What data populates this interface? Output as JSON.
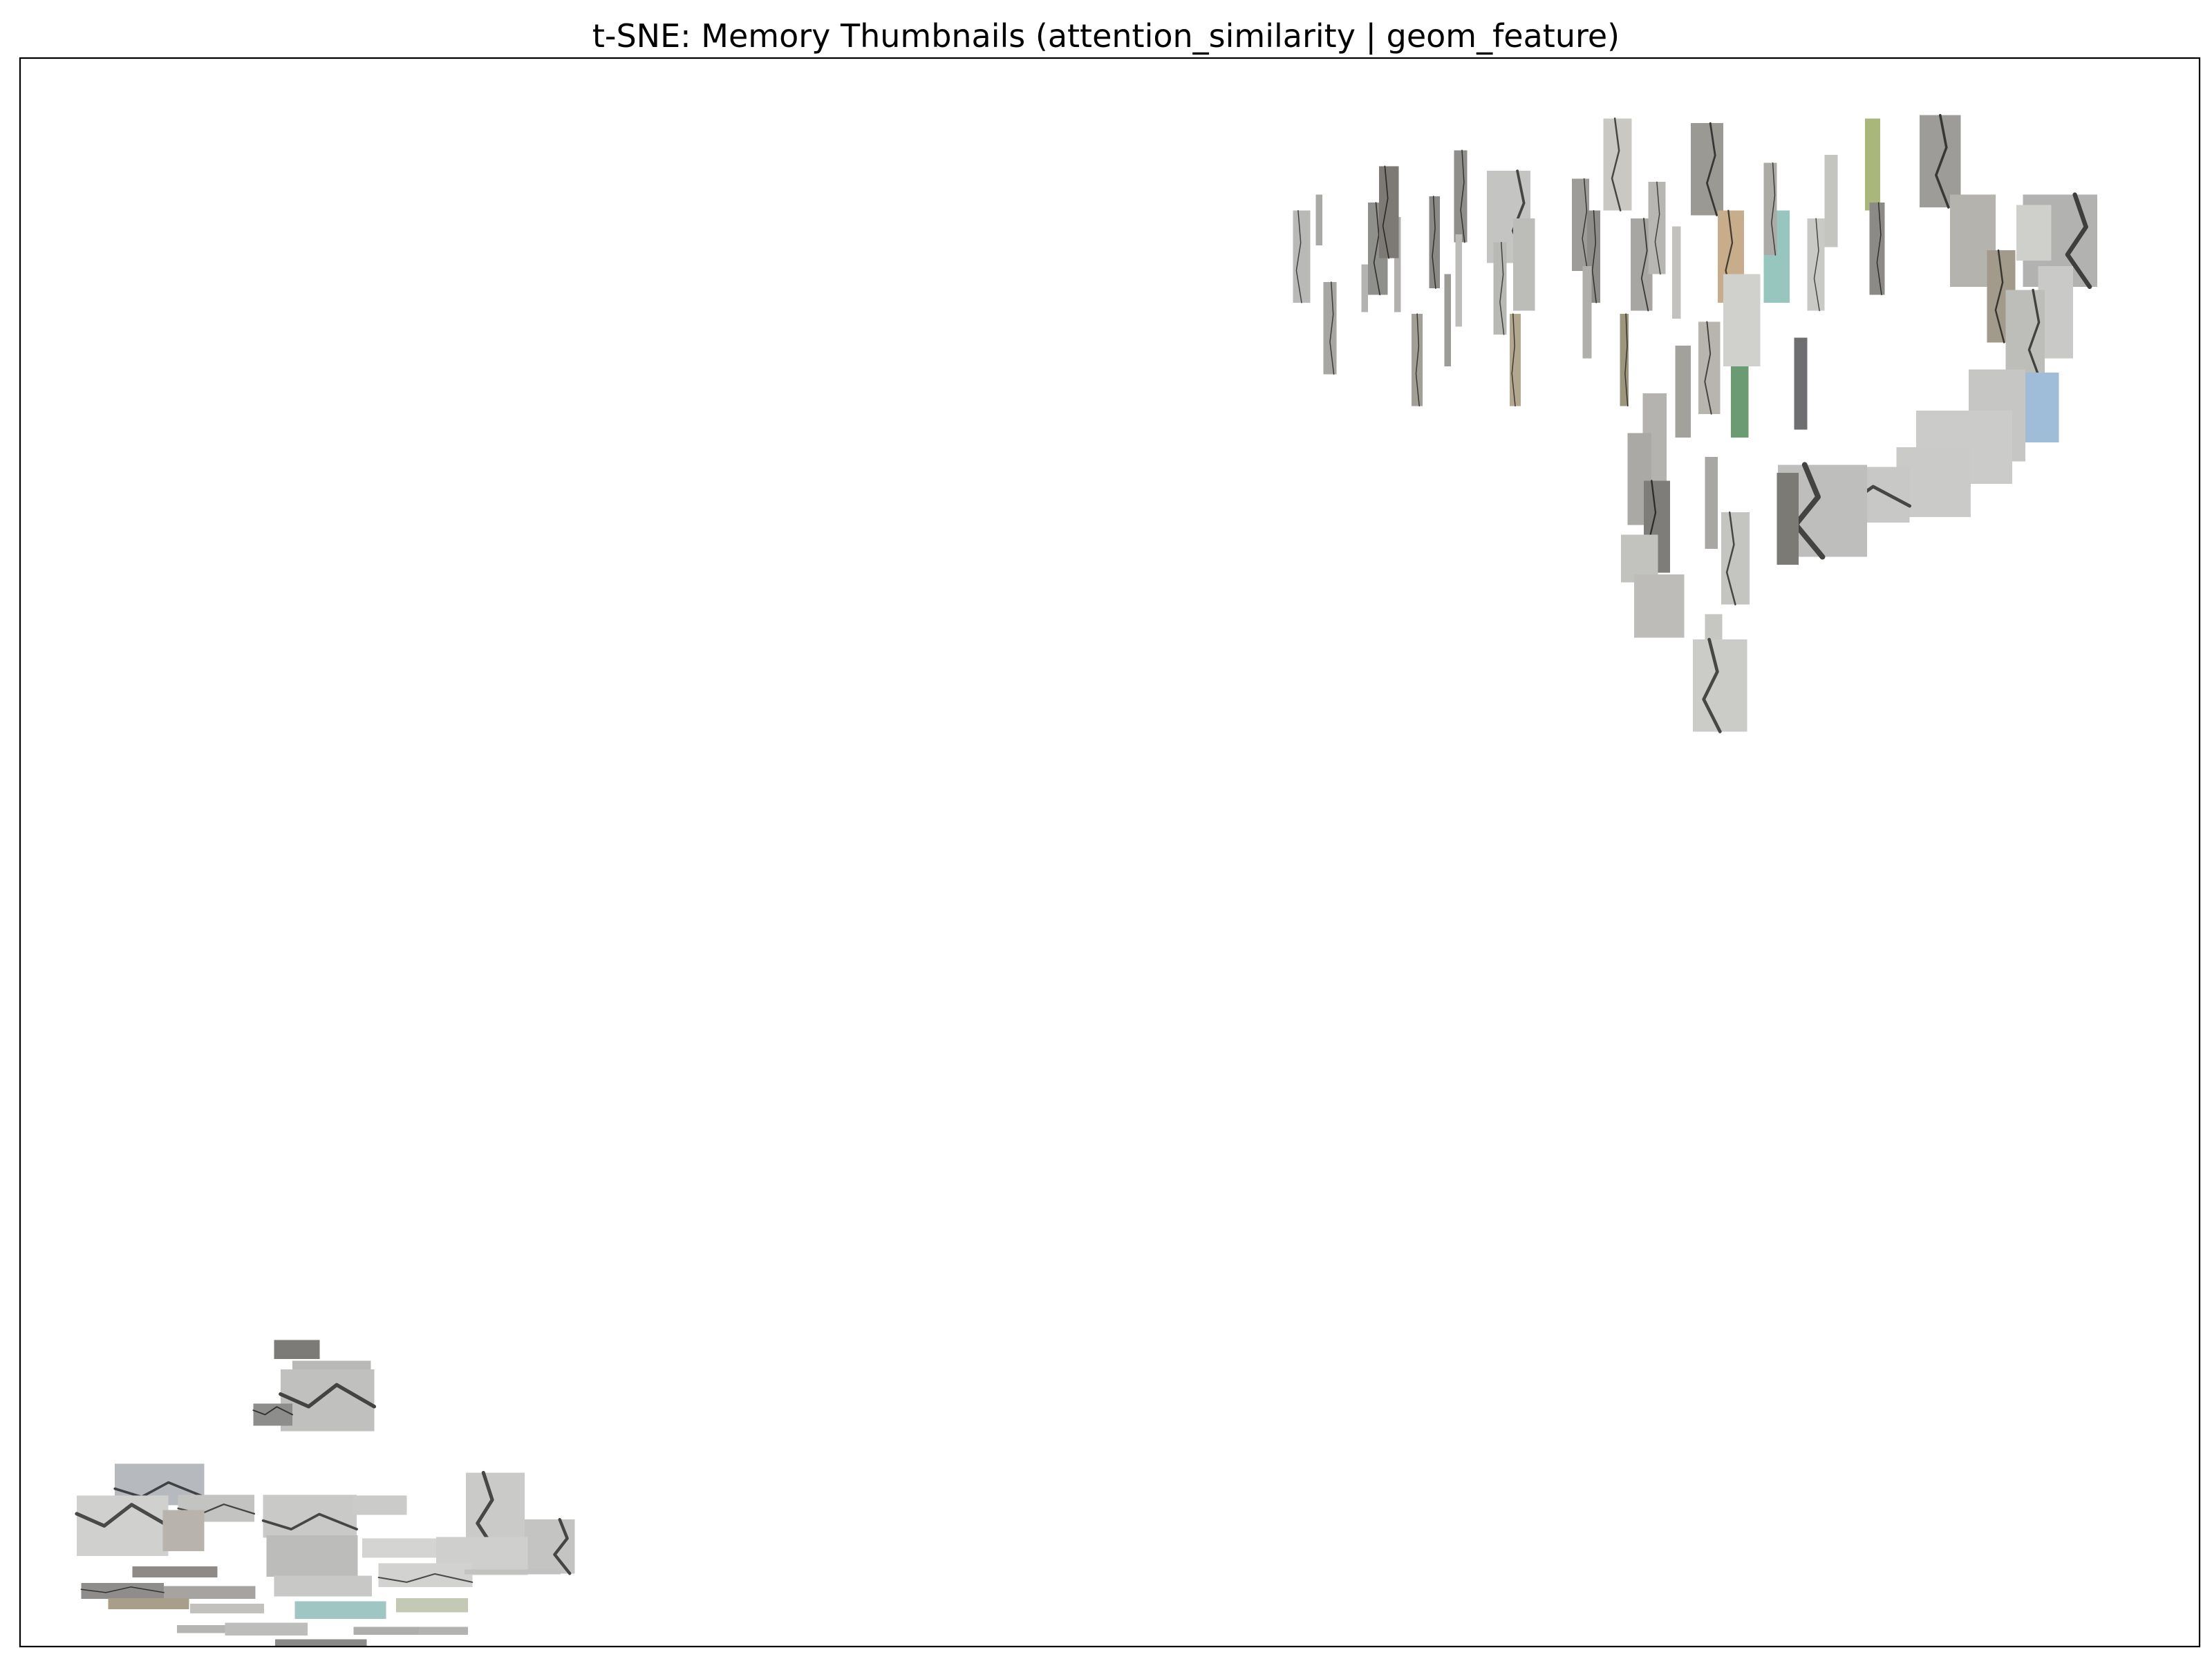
{
  "chart_data": {
    "type": "scatter",
    "title": "t-SNE: Memory Thumbnails (attention_similarity | geom_feature)",
    "xlabel": "",
    "ylabel": "",
    "xlim": [
      0,
      100
    ],
    "ylim": [
      0,
      100
    ],
    "axis_ticks": false,
    "grid": false,
    "marker": "image thumbnail",
    "series": [
      {
        "points": [
          {
            "x": 58.8,
            "y": 87.5,
            "w": 0.8,
            "h": 5.8,
            "color": "#b9b9b7",
            "crack": true
          },
          {
            "x": 59.6,
            "y": 89.8,
            "w": 0.3,
            "h": 3.2,
            "color": "#a9a9a6",
            "crack": false
          },
          {
            "x": 60.1,
            "y": 83.0,
            "w": 0.6,
            "h": 5.8,
            "color": "#a7a6a2",
            "crack": true
          },
          {
            "x": 62.3,
            "y": 88.0,
            "w": 0.9,
            "h": 5.8,
            "color": "#8f8f8c",
            "crack": true
          },
          {
            "x": 61.7,
            "y": 85.5,
            "w": 0.3,
            "h": 3.0,
            "color": "#b3b3b1",
            "crack": false
          },
          {
            "x": 63.2,
            "y": 87.0,
            "w": 0.3,
            "h": 6.0,
            "color": "#b2b1ad",
            "crack": false
          },
          {
            "x": 64.1,
            "y": 81.0,
            "w": 0.5,
            "h": 5.8,
            "color": "#a29f98",
            "crack": true
          },
          {
            "x": 64.9,
            "y": 88.4,
            "w": 0.5,
            "h": 5.8,
            "color": "#8c8a87",
            "crack": true
          },
          {
            "x": 65.5,
            "y": 83.5,
            "w": 0.3,
            "h": 5.8,
            "color": "#9d9b96",
            "crack": false
          },
          {
            "x": 66.1,
            "y": 91.3,
            "w": 0.6,
            "h": 5.8,
            "color": "#8f8e8a",
            "crack": true
          },
          {
            "x": 66.0,
            "y": 86.0,
            "w": 0.3,
            "h": 5.8,
            "color": "#bdbcb8",
            "crack": false
          },
          {
            "x": 62.8,
            "y": 90.3,
            "w": 0.9,
            "h": 5.8,
            "color": "#7d7a76",
            "crack": true
          },
          {
            "x": 68.3,
            "y": 90.0,
            "w": 2.0,
            "h": 5.8,
            "color": "#c4c4c2",
            "crack": true
          },
          {
            "x": 67.9,
            "y": 85.5,
            "w": 0.6,
            "h": 5.8,
            "color": "#b8b8b4",
            "crack": true
          },
          {
            "x": 69.0,
            "y": 87.0,
            "w": 1.0,
            "h": 5.8,
            "color": "#bcbcb8",
            "crack": false
          },
          {
            "x": 68.6,
            "y": 81.0,
            "w": 0.5,
            "h": 5.8,
            "color": "#b2a78f",
            "crack": true
          },
          {
            "x": 71.6,
            "y": 89.5,
            "w": 0.8,
            "h": 5.8,
            "color": "#9e9c98",
            "crack": true
          },
          {
            "x": 72.2,
            "y": 87.5,
            "w": 0.6,
            "h": 5.8,
            "color": "#8f8d89",
            "crack": true
          },
          {
            "x": 73.3,
            "y": 93.3,
            "w": 1.3,
            "h": 5.8,
            "color": "#c9c8c3",
            "crack": true
          },
          {
            "x": 71.9,
            "y": 84.0,
            "w": 0.4,
            "h": 5.8,
            "color": "#b0afab",
            "crack": false
          },
          {
            "x": 74.4,
            "y": 87.0,
            "w": 1.0,
            "h": 5.8,
            "color": "#a7a6a2",
            "crack": true
          },
          {
            "x": 75.1,
            "y": 89.3,
            "w": 0.8,
            "h": 5.8,
            "color": "#b7b6b2",
            "crack": true
          },
          {
            "x": 76.0,
            "y": 86.5,
            "w": 0.4,
            "h": 5.8,
            "color": "#c2c1bd",
            "crack": false
          },
          {
            "x": 73.6,
            "y": 81.0,
            "w": 0.4,
            "h": 5.8,
            "color": "#9d967f",
            "crack": true
          },
          {
            "x": 77.4,
            "y": 93.0,
            "w": 1.5,
            "h": 5.8,
            "color": "#9b9994",
            "crack": true
          },
          {
            "x": 78.5,
            "y": 87.5,
            "w": 1.2,
            "h": 5.8,
            "color": "#c8ad8c",
            "crack": true
          },
          {
            "x": 80.6,
            "y": 87.5,
            "w": 1.2,
            "h": 5.8,
            "color": "#96c6be",
            "crack": false
          },
          {
            "x": 80.3,
            "y": 90.5,
            "w": 0.6,
            "h": 5.8,
            "color": "#acaba6",
            "crack": true
          },
          {
            "x": 82.4,
            "y": 87.0,
            "w": 0.8,
            "h": 5.8,
            "color": "#c9c9c6",
            "crack": true
          },
          {
            "x": 83.1,
            "y": 91.0,
            "w": 0.6,
            "h": 5.8,
            "color": "#c5c5c0",
            "crack": false
          },
          {
            "x": 85.0,
            "y": 93.3,
            "w": 0.7,
            "h": 5.8,
            "color": "#a9b87a",
            "crack": false
          },
          {
            "x": 85.2,
            "y": 88.0,
            "w": 0.7,
            "h": 5.8,
            "color": "#8b8a86",
            "crack": true
          },
          {
            "x": 88.1,
            "y": 93.5,
            "w": 1.9,
            "h": 5.8,
            "color": "#9d9c98",
            "crack": true
          },
          {
            "x": 89.6,
            "y": 88.5,
            "w": 2.1,
            "h": 5.8,
            "color": "#b4b3ae",
            "crack": false
          },
          {
            "x": 93.6,
            "y": 88.5,
            "w": 3.4,
            "h": 5.8,
            "color": "#b2b2b0",
            "crack": true
          },
          {
            "x": 92.4,
            "y": 89.0,
            "w": 1.6,
            "h": 3.5,
            "color": "#cfcfcc",
            "crack": false
          },
          {
            "x": 90.9,
            "y": 85.0,
            "w": 1.3,
            "h": 5.8,
            "color": "#a29a8a",
            "crack": true
          },
          {
            "x": 93.4,
            "y": 84.0,
            "w": 1.6,
            "h": 5.8,
            "color": "#c9c9c7",
            "crack": false
          },
          {
            "x": 92.0,
            "y": 82.5,
            "w": 1.8,
            "h": 5.8,
            "color": "#bdbdb9",
            "crack": true
          },
          {
            "x": 92.7,
            "y": 78.0,
            "w": 1.7,
            "h": 4.4,
            "color": "#9fbcd8",
            "crack": false
          },
          {
            "x": 90.7,
            "y": 77.5,
            "w": 2.6,
            "h": 5.8,
            "color": "#c6c6c4",
            "crack": false
          },
          {
            "x": 89.2,
            "y": 75.5,
            "w": 4.4,
            "h": 4.6,
            "color": "#cbcbc9",
            "crack": false
          },
          {
            "x": 87.8,
            "y": 73.3,
            "w": 3.4,
            "h": 4.4,
            "color": "#cacac8",
            "crack": false
          },
          {
            "x": 84.6,
            "y": 72.5,
            "w": 4.2,
            "h": 3.5,
            "color": "#c8c8c6",
            "crack": true
          },
          {
            "x": 82.7,
            "y": 71.5,
            "w": 4.1,
            "h": 5.8,
            "color": "#bebebc",
            "crack": true
          },
          {
            "x": 81.7,
            "y": 79.5,
            "w": 0.6,
            "h": 5.8,
            "color": "#6d6f70",
            "crack": false
          },
          {
            "x": 78.9,
            "y": 79.0,
            "w": 0.8,
            "h": 5.8,
            "color": "#6a9b73",
            "crack": false
          },
          {
            "x": 77.5,
            "y": 80.5,
            "w": 1.0,
            "h": 5.8,
            "color": "#b8b5ae",
            "crack": true
          },
          {
            "x": 79.0,
            "y": 83.5,
            "w": 1.7,
            "h": 5.8,
            "color": "#d0d0cd",
            "crack": false
          },
          {
            "x": 76.3,
            "y": 79.0,
            "w": 0.7,
            "h": 5.8,
            "color": "#a3a19c",
            "crack": false
          },
          {
            "x": 75.0,
            "y": 76.0,
            "w": 1.1,
            "h": 5.8,
            "color": "#b4b3af",
            "crack": false
          },
          {
            "x": 74.3,
            "y": 73.5,
            "w": 1.1,
            "h": 5.8,
            "color": "#aaa9a5",
            "crack": false
          },
          {
            "x": 75.1,
            "y": 70.5,
            "w": 1.2,
            "h": 5.8,
            "color": "#7f7d79",
            "crack": true
          },
          {
            "x": 74.3,
            "y": 68.5,
            "w": 1.7,
            "h": 3.0,
            "color": "#c2c2bf",
            "crack": false
          },
          {
            "x": 75.2,
            "y": 65.5,
            "w": 2.3,
            "h": 4.0,
            "color": "#bdbcb8",
            "crack": false
          },
          {
            "x": 78.7,
            "y": 68.5,
            "w": 1.3,
            "h": 5.8,
            "color": "#c4c4c0",
            "crack": true
          },
          {
            "x": 77.6,
            "y": 72.0,
            "w": 0.6,
            "h": 5.8,
            "color": "#a8a7a3",
            "crack": false
          },
          {
            "x": 81.1,
            "y": 71.0,
            "w": 1.0,
            "h": 5.8,
            "color": "#7c7a74",
            "crack": false
          },
          {
            "x": 77.7,
            "y": 63.5,
            "w": 0.8,
            "h": 3.0,
            "color": "#c6c6c2",
            "crack": false
          },
          {
            "x": 78.0,
            "y": 60.5,
            "w": 2.5,
            "h": 5.8,
            "color": "#cbcbc8",
            "crack": true
          },
          {
            "x": 12.7,
            "y": 18.7,
            "w": 2.1,
            "h": 1.2,
            "color": "#7c7b78",
            "crack": false
          },
          {
            "x": 14.3,
            "y": 17.3,
            "w": 3.6,
            "h": 1.4,
            "color": "#b8b8b6",
            "crack": false
          },
          {
            "x": 14.1,
            "y": 15.5,
            "w": 4.3,
            "h": 3.9,
            "color": "#c0c0be",
            "crack": true
          },
          {
            "x": 11.6,
            "y": 14.6,
            "w": 1.8,
            "h": 1.4,
            "color": "#8d8d8b",
            "crack": true
          },
          {
            "x": 6.4,
            "y": 10.2,
            "w": 4.1,
            "h": 2.6,
            "color": "#b6babf",
            "crack": true
          },
          {
            "x": 9.0,
            "y": 8.7,
            "w": 3.5,
            "h": 1.7,
            "color": "#c3c3c1",
            "crack": true
          },
          {
            "x": 4.7,
            "y": 7.6,
            "w": 4.2,
            "h": 3.8,
            "color": "#d0d0ce",
            "crack": true
          },
          {
            "x": 7.5,
            "y": 7.3,
            "w": 1.9,
            "h": 2.6,
            "color": "#b9b3ad",
            "crack": false
          },
          {
            "x": 13.3,
            "y": 8.2,
            "w": 4.3,
            "h": 2.7,
            "color": "#c9c9c7",
            "crack": true
          },
          {
            "x": 16.5,
            "y": 8.9,
            "w": 2.5,
            "h": 1.2,
            "color": "#cbcbc9",
            "crack": false
          },
          {
            "x": 21.8,
            "y": 8.5,
            "w": 2.7,
            "h": 4.9,
            "color": "#cacac8",
            "crack": true
          },
          {
            "x": 24.3,
            "y": 6.3,
            "w": 2.3,
            "h": 3.4,
            "color": "#c4c4c2",
            "crack": true
          },
          {
            "x": 13.4,
            "y": 5.7,
            "w": 4.2,
            "h": 2.6,
            "color": "#bcbcba",
            "crack": false
          },
          {
            "x": 17.7,
            "y": 6.2,
            "w": 4.0,
            "h": 1.2,
            "color": "#d4d4d2",
            "crack": false
          },
          {
            "x": 21.2,
            "y": 5.7,
            "w": 4.2,
            "h": 2.4,
            "color": "#cfcfcd",
            "crack": false
          },
          {
            "x": 18.6,
            "y": 4.5,
            "w": 4.3,
            "h": 1.5,
            "color": "#d2d2d0",
            "crack": true
          },
          {
            "x": 7.1,
            "y": 4.7,
            "w": 3.9,
            "h": 0.7,
            "color": "#8f8a85",
            "crack": false
          },
          {
            "x": 13.9,
            "y": 3.8,
            "w": 4.5,
            "h": 1.3,
            "color": "#c8c8c6",
            "crack": false
          },
          {
            "x": 22.6,
            "y": 4.7,
            "w": 4.4,
            "h": 0.3,
            "color": "#c2c2c0",
            "crack": false
          },
          {
            "x": 8.4,
            "y": 3.4,
            "w": 4.8,
            "h": 0.8,
            "color": "#a5a4a0",
            "crack": false
          },
          {
            "x": 4.7,
            "y": 3.5,
            "w": 3.8,
            "h": 1.0,
            "color": "#8e8d8b",
            "crack": true
          },
          {
            "x": 5.9,
            "y": 2.7,
            "w": 3.7,
            "h": 0.7,
            "color": "#a89e8a",
            "crack": false
          },
          {
            "x": 14.7,
            "y": 2.3,
            "w": 4.2,
            "h": 1.1,
            "color": "#9fc6c3",
            "crack": false
          },
          {
            "x": 18.9,
            "y": 2.6,
            "w": 3.3,
            "h": 0.9,
            "color": "#c4c9b5",
            "crack": false
          },
          {
            "x": 9.5,
            "y": 2.4,
            "w": 3.4,
            "h": 0.6,
            "color": "#c2c1be",
            "crack": false
          },
          {
            "x": 9.4,
            "y": 1.1,
            "w": 4.4,
            "h": 0.5,
            "color": "#b5b5b3",
            "crack": false
          },
          {
            "x": 11.3,
            "y": 1.1,
            "w": 3.8,
            "h": 0.8,
            "color": "#bdbdbb",
            "crack": false
          },
          {
            "x": 18.2,
            "y": 1.0,
            "w": 4.7,
            "h": 0.5,
            "color": "#b3b3b1",
            "crack": false
          },
          {
            "x": 13.8,
            "y": 0.2,
            "w": 4.2,
            "h": 0.5,
            "color": "#8a8a88",
            "crack": false
          },
          {
            "x": 16.8,
            "y": 1.0,
            "w": 3.0,
            "h": 0.5,
            "color": "#aeaeac",
            "crack": false
          }
        ]
      }
    ]
  }
}
